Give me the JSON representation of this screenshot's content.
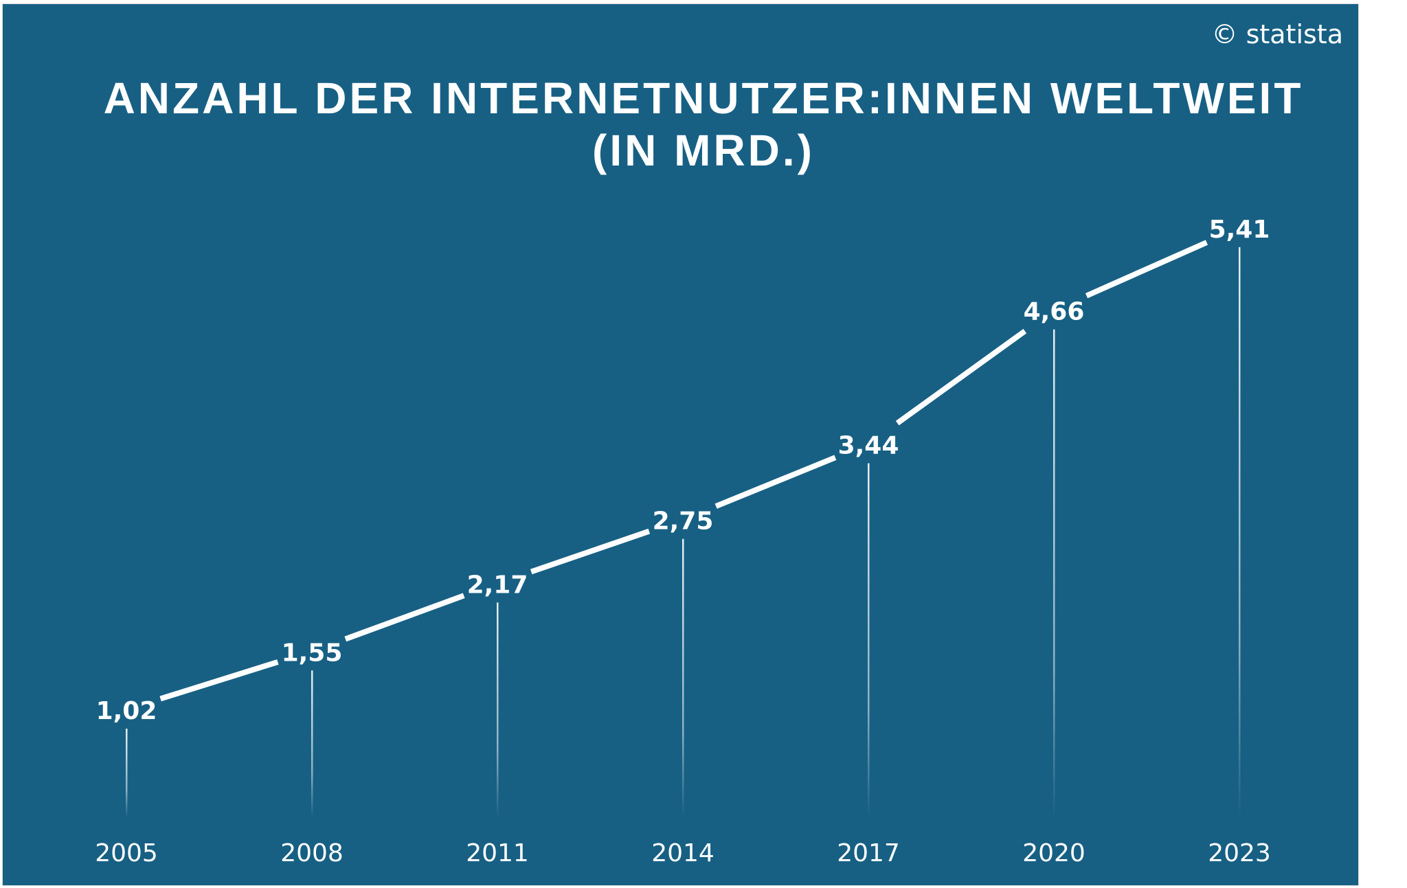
{
  "source": "© statista",
  "chart_data": {
    "type": "line",
    "title": [
      "ANZAHL DER INTERNETNUTZER:INNEN WELTWEIT",
      "(IN MRD.)"
    ],
    "xlabel": "",
    "ylabel": "",
    "categories": [
      "2005",
      "2008",
      "2011",
      "2014",
      "2017",
      "2020",
      "2023"
    ],
    "values": [
      1.02,
      1.55,
      2.17,
      2.75,
      3.44,
      4.66,
      5.41
    ],
    "data_labels": [
      "1,02",
      "1,55",
      "2,17",
      "2,75",
      "3,44",
      "4,66",
      "5,41"
    ],
    "grid": false,
    "legend": "none",
    "colors": {
      "background": "#176084",
      "line": "#ffffff",
      "text": "#ffffff"
    }
  }
}
